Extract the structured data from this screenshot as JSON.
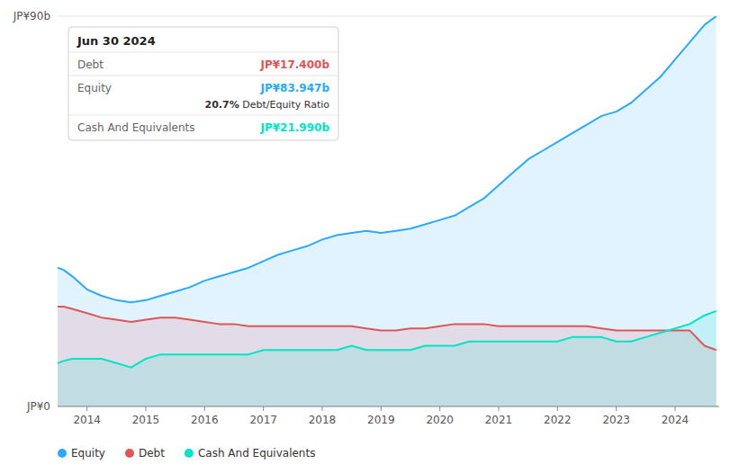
{
  "chart_data": {
    "type": "area",
    "x": [
      2013.5,
      2013.6,
      2013.75,
      2014.0,
      2014.25,
      2014.5,
      2014.75,
      2015.0,
      2015.25,
      2015.5,
      2015.75,
      2016.0,
      2016.25,
      2016.5,
      2016.75,
      2017.0,
      2017.25,
      2017.5,
      2017.75,
      2018.0,
      2018.25,
      2018.5,
      2018.75,
      2019.0,
      2019.25,
      2019.5,
      2019.75,
      2020.0,
      2020.25,
      2020.5,
      2020.75,
      2021.0,
      2021.25,
      2021.5,
      2021.75,
      2022.0,
      2022.25,
      2022.5,
      2022.75,
      2023.0,
      2023.25,
      2023.5,
      2023.75,
      2024.0,
      2024.25,
      2024.5,
      2024.7
    ],
    "series": [
      {
        "name": "Equity",
        "color": "#29aaff",
        "values": [
          32,
          31.5,
          30,
          27,
          25.5,
          24.5,
          24,
          24.5,
          25.5,
          26.5,
          27.5,
          29,
          30,
          31,
          32,
          33.5,
          35,
          36,
          37,
          38.5,
          39.5,
          40,
          40.5,
          40,
          40.5,
          41,
          42,
          43,
          44,
          46,
          48,
          51,
          54,
          57,
          59,
          61,
          63,
          65,
          67,
          68,
          70,
          73,
          76,
          80,
          84,
          88,
          90
        ]
      },
      {
        "name": "Debt",
        "color": "#e05555",
        "values": [
          23,
          23,
          22.5,
          21.5,
          20.5,
          20,
          19.5,
          20,
          20.5,
          20.5,
          20,
          19.5,
          19,
          19,
          18.5,
          18.5,
          18.5,
          18.5,
          18.5,
          18.5,
          18.5,
          18.5,
          18,
          17.5,
          17.5,
          18,
          18,
          18.5,
          19,
          19,
          19,
          18.5,
          18.5,
          18.5,
          18.5,
          18.5,
          18.5,
          18.5,
          18,
          17.5,
          17.5,
          17.5,
          17.5,
          17.5,
          17.5,
          14,
          13
        ]
      },
      {
        "name": "Cash And Equivalents",
        "color": "#00e5c8",
        "values": [
          10,
          10.5,
          11,
          11,
          11,
          10,
          9,
          11,
          12,
          12,
          12,
          12,
          12,
          12,
          12,
          13,
          13,
          13,
          13,
          13,
          13,
          14,
          13,
          13,
          13,
          13,
          14,
          14,
          14,
          15,
          15,
          15,
          15,
          15,
          15,
          15,
          16,
          16,
          16,
          15,
          15,
          16,
          17,
          18,
          19,
          21,
          22
        ]
      }
    ],
    "xlim": [
      2013.5,
      2024.75
    ],
    "xticks": [
      2014,
      2015,
      2016,
      2017,
      2018,
      2019,
      2020,
      2021,
      2022,
      2023,
      2024
    ],
    "ylim": [
      0,
      90
    ],
    "yticks": [
      {
        "value": 0,
        "label": "JP¥0"
      },
      {
        "value": 90,
        "label": "JP¥90b"
      }
    ],
    "grid": true,
    "legend": "lower left",
    "annotations": [
      {
        "text": "Jun 30 2024"
      },
      {
        "label": "Debt",
        "text": "JP¥17.400b"
      },
      {
        "label": "Equity",
        "text": "JP¥83.947b"
      },
      {
        "text": "20.7%",
        "suffix": " Debt/Equity Ratio"
      },
      {
        "label": "Cash And Equivalents",
        "text": "JP¥21.990b"
      }
    ]
  }
}
